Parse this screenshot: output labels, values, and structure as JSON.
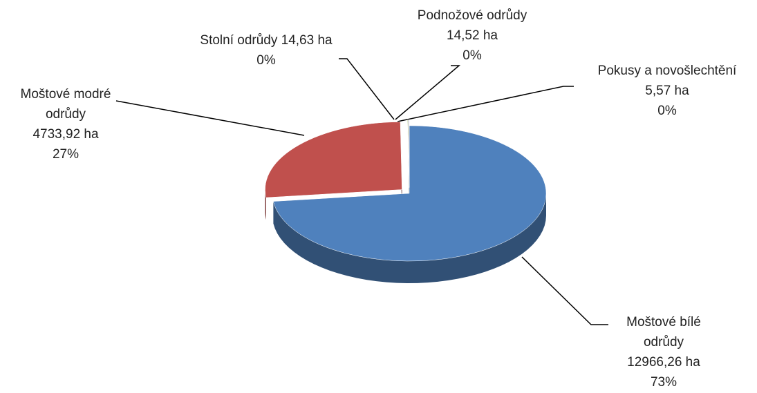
{
  "chart_data": {
    "type": "pie",
    "categories": [
      "Moštové bílé odrůdy",
      "Moštové modré odrůdy",
      "Stolní odrůdy",
      "Podnožové odrůdy",
      "Pokusy a novošlechtění"
    ],
    "values": [
      12966.26,
      4733.92,
      14.63,
      14.52,
      5.57
    ],
    "value_labels": [
      "12966,26 ha",
      "4733,92 ha",
      "14,63 ha",
      "14,52 ha",
      "5,57 ha"
    ],
    "percent_labels": [
      "73%",
      "27%",
      "0%",
      "0%",
      "0%"
    ],
    "colors": [
      "#4f81bd",
      "#c0504d",
      "#9bbb59",
      "#8064a2",
      "#4bacc6"
    ]
  }
}
